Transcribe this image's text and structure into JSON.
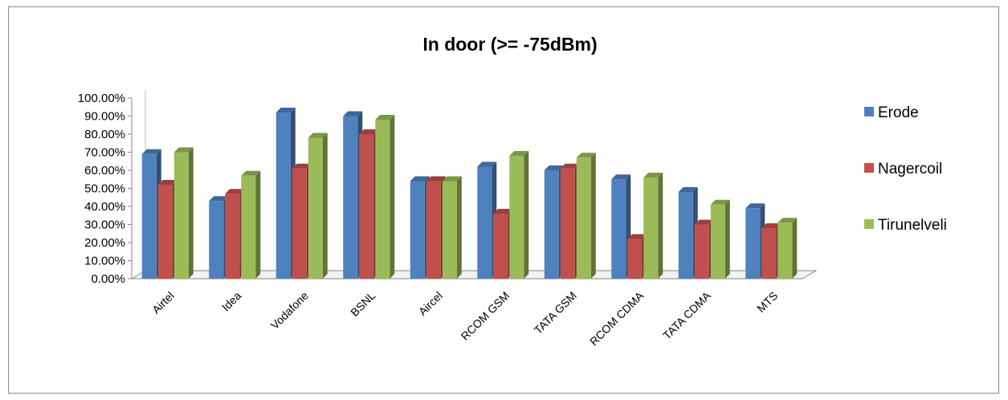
{
  "chart_data": {
    "type": "bar",
    "title": "In door (>= -75dBm)",
    "xlabel": "",
    "ylabel": "",
    "ylim": [
      0,
      1
    ],
    "yticks": [
      "0.00%",
      "10.00%",
      "20.00%",
      "30.00%",
      "40.00%",
      "50.00%",
      "60.00%",
      "70.00%",
      "80.00%",
      "90.00%",
      "100.00%"
    ],
    "categories": [
      "Airtel",
      "Idea",
      "Vodafone",
      "BSNL",
      "Aircel",
      "RCOM GSM",
      "TATA GSM",
      "RCOM CDMA",
      "TATA CDMA",
      "MTS"
    ],
    "series": [
      {
        "name": "Erode",
        "color": "#4f81bd",
        "values": [
          0.69,
          0.43,
          0.92,
          0.9,
          0.54,
          0.62,
          0.6,
          0.55,
          0.48,
          0.39
        ]
      },
      {
        "name": "Nagercoil",
        "color": "#c0504d",
        "values": [
          0.52,
          0.47,
          0.61,
          0.8,
          0.54,
          0.36,
          0.61,
          0.22,
          0.3,
          0.28
        ]
      },
      {
        "name": "Tirunelveli",
        "color": "#9bbb59",
        "values": [
          0.7,
          0.57,
          0.78,
          0.88,
          0.54,
          0.68,
          0.67,
          0.56,
          0.41,
          0.31
        ]
      }
    ],
    "grid": false,
    "legend_position": "right",
    "style": "3d-clustered-column"
  }
}
